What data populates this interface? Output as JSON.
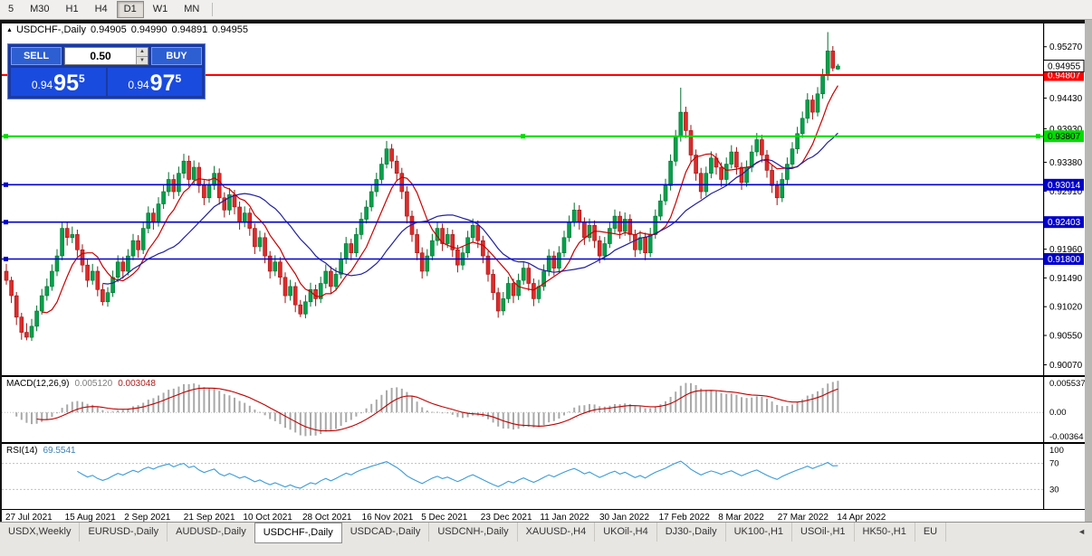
{
  "toolbar": {
    "timeframes": [
      {
        "label": "5",
        "active": false
      },
      {
        "label": "M30",
        "active": false
      },
      {
        "label": "H1",
        "active": false
      },
      {
        "label": "H4",
        "active": false
      },
      {
        "label": "D1",
        "active": true
      },
      {
        "label": "W1",
        "active": false
      },
      {
        "label": "MN",
        "active": false
      }
    ]
  },
  "window": {
    "title_symbol": "USDCHF-,Daily",
    "ohlc": {
      "open": "0.94905",
      "high": "0.94990",
      "low": "0.94891",
      "close": "0.94955"
    }
  },
  "icons": {
    "collapse": "▲",
    "spinner_up": "▲",
    "spinner_down": "▼",
    "tabs_scroll_left": "◄"
  },
  "trade_widget": {
    "sell_label": "SELL",
    "buy_label": "BUY",
    "volume": "0.50",
    "sell_price": {
      "prefix": "0.94",
      "big": "95",
      "sup": "5"
    },
    "buy_price": {
      "prefix": "0.94",
      "big": "97",
      "sup": "5"
    }
  },
  "chart_data": {
    "type": "candlestick",
    "symbol": "USDCHF-",
    "timeframe": "Daily",
    "colors": {
      "up": "#00a24c",
      "up_edge": "#00702f",
      "down": "#e02a2a",
      "down_edge": "#9c1515"
    },
    "y_axis": {
      "min": 0.899,
      "max": 0.9565,
      "ticks": [
        "0.95270",
        "0.94430",
        "0.93930",
        "0.93380",
        "0.92910",
        "0.92440",
        "0.91960",
        "0.91490",
        "0.91020",
        "0.90550",
        "0.90070"
      ]
    },
    "x_labels": [
      "27 Jul 2021",
      "15 Aug 2021",
      "2 Sep 2021",
      "21 Sep 2021",
      "10 Oct 2021",
      "28 Oct 2021",
      "16 Nov 2021",
      "5 Dec 2021",
      "23 Dec 2021",
      "11 Jan 2022",
      "30 Jan 2022",
      "17 Feb 2022",
      "8 Mar 2022",
      "27 Mar 2022",
      "14 Apr 2022"
    ],
    "hlines": [
      {
        "value": 0.94807,
        "label": "0.94807",
        "color": "#ff0000",
        "label_text": "#ffffff",
        "width": 2,
        "handles": []
      },
      {
        "value": 0.93807,
        "label": "0.93807",
        "color": "#00dd00",
        "label_text": "#000000",
        "width": 2,
        "handles": [
          "L",
          "C",
          "R"
        ]
      },
      {
        "value": 0.93014,
        "label": "0.93014",
        "color": "#0000cc",
        "label_text": "#ffffff",
        "width": 1.6,
        "handles": [
          "L"
        ]
      },
      {
        "value": 0.92403,
        "label": "0.92403",
        "color": "#0000cc",
        "label_text": "#ffffff",
        "width": 1.6,
        "handles": [
          "L"
        ]
      },
      {
        "value": 0.918,
        "label": "0.91800",
        "color": "#0000cc",
        "label_text": "#ffffff",
        "width": 1.6,
        "handles": [
          "L"
        ]
      }
    ],
    "current_price": {
      "value": 0.94955,
      "label": "0.94955"
    },
    "ma": [
      {
        "period": 8,
        "color": "#cc0000"
      },
      {
        "period": 20,
        "color": "#20209f"
      }
    ],
    "candles": [
      [
        0.916,
        0.9172,
        0.9138,
        0.9145
      ],
      [
        0.9145,
        0.9151,
        0.9108,
        0.912
      ],
      [
        0.912,
        0.9126,
        0.9072,
        0.9085
      ],
      [
        0.9085,
        0.9092,
        0.9048,
        0.906
      ],
      [
        0.906,
        0.9075,
        0.9047,
        0.9052
      ],
      [
        0.9052,
        0.9082,
        0.9046,
        0.907
      ],
      [
        0.907,
        0.9104,
        0.9062,
        0.9095
      ],
      [
        0.9095,
        0.9131,
        0.9089,
        0.912
      ],
      [
        0.912,
        0.9148,
        0.9112,
        0.9135
      ],
      [
        0.9135,
        0.9171,
        0.9128,
        0.916
      ],
      [
        0.916,
        0.9196,
        0.9152,
        0.9185
      ],
      [
        0.9185,
        0.9241,
        0.9178,
        0.923
      ],
      [
        0.923,
        0.9239,
        0.9202,
        0.9215
      ],
      [
        0.9215,
        0.9233,
        0.9206,
        0.922
      ],
      [
        0.922,
        0.9228,
        0.9184,
        0.9195
      ],
      [
        0.9195,
        0.9204,
        0.9158,
        0.917
      ],
      [
        0.917,
        0.9179,
        0.9134,
        0.9145
      ],
      [
        0.9145,
        0.9172,
        0.9138,
        0.916
      ],
      [
        0.916,
        0.9168,
        0.9119,
        0.913
      ],
      [
        0.913,
        0.9139,
        0.9104,
        0.911
      ],
      [
        0.911,
        0.9134,
        0.9102,
        0.9125
      ],
      [
        0.9125,
        0.9161,
        0.9118,
        0.915
      ],
      [
        0.915,
        0.9186,
        0.9142,
        0.9175
      ],
      [
        0.9175,
        0.9184,
        0.9148,
        0.916
      ],
      [
        0.916,
        0.9196,
        0.9153,
        0.9185
      ],
      [
        0.9185,
        0.9221,
        0.9178,
        0.921
      ],
      [
        0.921,
        0.9219,
        0.9182,
        0.9195
      ],
      [
        0.9195,
        0.9241,
        0.9188,
        0.923
      ],
      [
        0.923,
        0.9266,
        0.9222,
        0.9255
      ],
      [
        0.9255,
        0.9263,
        0.9228,
        0.924
      ],
      [
        0.924,
        0.9281,
        0.9233,
        0.927
      ],
      [
        0.927,
        0.9301,
        0.9262,
        0.929
      ],
      [
        0.929,
        0.9322,
        0.9283,
        0.931
      ],
      [
        0.931,
        0.9318,
        0.9278,
        0.929
      ],
      [
        0.929,
        0.9331,
        0.9283,
        0.932
      ],
      [
        0.932,
        0.9352,
        0.9312,
        0.934
      ],
      [
        0.934,
        0.9349,
        0.9298,
        0.931
      ],
      [
        0.931,
        0.9341,
        0.9302,
        0.933
      ],
      [
        0.933,
        0.9338,
        0.9288,
        0.93
      ],
      [
        0.93,
        0.9309,
        0.9268,
        0.928
      ],
      [
        0.928,
        0.9311,
        0.9272,
        0.93
      ],
      [
        0.93,
        0.9332,
        0.9293,
        0.932
      ],
      [
        0.932,
        0.9328,
        0.9269,
        0.928
      ],
      [
        0.928,
        0.9289,
        0.9248,
        0.926
      ],
      [
        0.926,
        0.9296,
        0.9252,
        0.9285
      ],
      [
        0.9285,
        0.9293,
        0.9253,
        0.9265
      ],
      [
        0.9265,
        0.9274,
        0.9228,
        0.924
      ],
      [
        0.924,
        0.9266,
        0.9232,
        0.9255
      ],
      [
        0.9255,
        0.9263,
        0.9218,
        0.923
      ],
      [
        0.923,
        0.9238,
        0.9188,
        0.92
      ],
      [
        0.92,
        0.9226,
        0.9192,
        0.9215
      ],
      [
        0.9215,
        0.9223,
        0.9173,
        0.9185
      ],
      [
        0.9185,
        0.9193,
        0.9148,
        0.916
      ],
      [
        0.916,
        0.9186,
        0.9152,
        0.9175
      ],
      [
        0.9175,
        0.9183,
        0.9138,
        0.915
      ],
      [
        0.915,
        0.9158,
        0.9108,
        0.912
      ],
      [
        0.912,
        0.9146,
        0.9112,
        0.9135
      ],
      [
        0.9135,
        0.9142,
        0.9093,
        0.9105
      ],
      [
        0.9105,
        0.9113,
        0.9085,
        0.909
      ],
      [
        0.909,
        0.9121,
        0.9083,
        0.911
      ],
      [
        0.911,
        0.9141,
        0.9102,
        0.913
      ],
      [
        0.913,
        0.9138,
        0.9103,
        0.9115
      ],
      [
        0.9115,
        0.9151,
        0.9108,
        0.914
      ],
      [
        0.914,
        0.9171,
        0.9132,
        0.916
      ],
      [
        0.916,
        0.9168,
        0.9123,
        0.9135
      ],
      [
        0.9135,
        0.9166,
        0.9128,
        0.9155
      ],
      [
        0.9155,
        0.9191,
        0.9148,
        0.918
      ],
      [
        0.918,
        0.9216,
        0.9172,
        0.9205
      ],
      [
        0.9205,
        0.9213,
        0.9178,
        0.919
      ],
      [
        0.919,
        0.9231,
        0.9183,
        0.922
      ],
      [
        0.922,
        0.9256,
        0.9212,
        0.9245
      ],
      [
        0.9245,
        0.9276,
        0.9238,
        0.9265
      ],
      [
        0.9265,
        0.9301,
        0.9258,
        0.929
      ],
      [
        0.929,
        0.9321,
        0.9282,
        0.931
      ],
      [
        0.931,
        0.9346,
        0.9303,
        0.9335
      ],
      [
        0.9335,
        0.9373,
        0.9328,
        0.936
      ],
      [
        0.936,
        0.9368,
        0.9328,
        0.934
      ],
      [
        0.934,
        0.9349,
        0.9308,
        0.932
      ],
      [
        0.932,
        0.9329,
        0.9278,
        0.929
      ],
      [
        0.929,
        0.9299,
        0.9238,
        0.925
      ],
      [
        0.925,
        0.9259,
        0.9208,
        0.922
      ],
      [
        0.922,
        0.9229,
        0.9178,
        0.919
      ],
      [
        0.919,
        0.9199,
        0.9148,
        0.916
      ],
      [
        0.916,
        0.9196,
        0.9152,
        0.9185
      ],
      [
        0.9185,
        0.9221,
        0.9178,
        0.921
      ],
      [
        0.921,
        0.9241,
        0.9202,
        0.923
      ],
      [
        0.923,
        0.9238,
        0.9193,
        0.9205
      ],
      [
        0.9205,
        0.9231,
        0.9198,
        0.922
      ],
      [
        0.922,
        0.9228,
        0.9183,
        0.9195
      ],
      [
        0.9195,
        0.9203,
        0.9158,
        0.917
      ],
      [
        0.917,
        0.9201,
        0.9162,
        0.919
      ],
      [
        0.919,
        0.9226,
        0.9182,
        0.9215
      ],
      [
        0.9215,
        0.9246,
        0.9208,
        0.9235
      ],
      [
        0.9235,
        0.9243,
        0.9198,
        0.921
      ],
      [
        0.921,
        0.9218,
        0.9173,
        0.9185
      ],
      [
        0.9185,
        0.9193,
        0.9143,
        0.9155
      ],
      [
        0.9155,
        0.9163,
        0.9113,
        0.9125
      ],
      [
        0.9125,
        0.9133,
        0.9084,
        0.9095
      ],
      [
        0.9095,
        0.9126,
        0.9088,
        0.9115
      ],
      [
        0.9115,
        0.9151,
        0.9108,
        0.914
      ],
      [
        0.914,
        0.9148,
        0.9108,
        0.912
      ],
      [
        0.912,
        0.9156,
        0.9113,
        0.9145
      ],
      [
        0.9145,
        0.9176,
        0.9138,
        0.9165
      ],
      [
        0.9165,
        0.9173,
        0.9128,
        0.914
      ],
      [
        0.914,
        0.9148,
        0.9103,
        0.9115
      ],
      [
        0.9115,
        0.9146,
        0.9108,
        0.9135
      ],
      [
        0.9135,
        0.9171,
        0.9128,
        0.916
      ],
      [
        0.916,
        0.9196,
        0.9152,
        0.9185
      ],
      [
        0.9185,
        0.9193,
        0.9153,
        0.9165
      ],
      [
        0.9165,
        0.9201,
        0.9158,
        0.919
      ],
      [
        0.919,
        0.9226,
        0.9183,
        0.9215
      ],
      [
        0.9215,
        0.9251,
        0.9208,
        0.924
      ],
      [
        0.924,
        0.9272,
        0.9233,
        0.926
      ],
      [
        0.926,
        0.9268,
        0.9228,
        0.924
      ],
      [
        0.924,
        0.9248,
        0.9203,
        0.9215
      ],
      [
        0.9215,
        0.9246,
        0.9208,
        0.9235
      ],
      [
        0.9235,
        0.9243,
        0.9198,
        0.921
      ],
      [
        0.921,
        0.9218,
        0.9173,
        0.9185
      ],
      [
        0.9185,
        0.9216,
        0.9178,
        0.9205
      ],
      [
        0.9205,
        0.9241,
        0.9198,
        0.923
      ],
      [
        0.923,
        0.9261,
        0.9222,
        0.925
      ],
      [
        0.925,
        0.9258,
        0.9213,
        0.9225
      ],
      [
        0.9225,
        0.9256,
        0.9218,
        0.9245
      ],
      [
        0.9245,
        0.9253,
        0.9208,
        0.922
      ],
      [
        0.922,
        0.9228,
        0.9183,
        0.9195
      ],
      [
        0.9195,
        0.9226,
        0.9188,
        0.9215
      ],
      [
        0.9215,
        0.9223,
        0.9178,
        0.919
      ],
      [
        0.919,
        0.9231,
        0.9183,
        0.922
      ],
      [
        0.922,
        0.9261,
        0.9213,
        0.925
      ],
      [
        0.925,
        0.9286,
        0.9243,
        0.9275
      ],
      [
        0.9275,
        0.9311,
        0.9268,
        0.93
      ],
      [
        0.93,
        0.9351,
        0.9292,
        0.934
      ],
      [
        0.934,
        0.9391,
        0.9332,
        0.938
      ],
      [
        0.938,
        0.946,
        0.9372,
        0.942
      ],
      [
        0.942,
        0.9429,
        0.9378,
        0.939
      ],
      [
        0.939,
        0.9399,
        0.9338,
        0.935
      ],
      [
        0.935,
        0.9359,
        0.9308,
        0.932
      ],
      [
        0.932,
        0.9329,
        0.9278,
        0.929
      ],
      [
        0.929,
        0.9331,
        0.9283,
        0.932
      ],
      [
        0.932,
        0.9356,
        0.9312,
        0.9345
      ],
      [
        0.9345,
        0.9353,
        0.9318,
        0.933
      ],
      [
        0.933,
        0.9338,
        0.9298,
        0.931
      ],
      [
        0.931,
        0.9346,
        0.9302,
        0.9335
      ],
      [
        0.9335,
        0.9366,
        0.9328,
        0.9355
      ],
      [
        0.9355,
        0.9363,
        0.9318,
        0.933
      ],
      [
        0.933,
        0.9338,
        0.9293,
        0.9305
      ],
      [
        0.9305,
        0.9341,
        0.9298,
        0.933
      ],
      [
        0.933,
        0.9366,
        0.9322,
        0.9355
      ],
      [
        0.9355,
        0.9386,
        0.9348,
        0.9375
      ],
      [
        0.9375,
        0.9383,
        0.9338,
        0.935
      ],
      [
        0.935,
        0.9358,
        0.9313,
        0.9325
      ],
      [
        0.9325,
        0.9333,
        0.9288,
        0.93
      ],
      [
        0.93,
        0.9308,
        0.9268,
        0.928
      ],
      [
        0.928,
        0.9321,
        0.9273,
        0.931
      ],
      [
        0.931,
        0.9346,
        0.9302,
        0.9335
      ],
      [
        0.9335,
        0.9371,
        0.9328,
        0.936
      ],
      [
        0.936,
        0.9396,
        0.9352,
        0.9385
      ],
      [
        0.9385,
        0.9421,
        0.9378,
        0.941
      ],
      [
        0.941,
        0.9451,
        0.9402,
        0.944
      ],
      [
        0.944,
        0.9448,
        0.9408,
        0.942
      ],
      [
        0.942,
        0.9461,
        0.9413,
        0.945
      ],
      [
        0.945,
        0.9491,
        0.9442,
        0.948
      ],
      [
        0.948,
        0.9551,
        0.9472,
        0.952
      ],
      [
        0.952,
        0.9528,
        0.9487,
        0.9492
      ],
      [
        0.94905,
        0.9499,
        0.94891,
        0.94955
      ]
    ]
  },
  "macd": {
    "label": "MACD(12,26,9)",
    "value1": "0.005120",
    "value2": "0.003048",
    "params": {
      "fast": 12,
      "slow": 26,
      "signal": 9
    },
    "axis_labels": [
      "0.005537",
      "0.00",
      "-0.00364"
    ],
    "colors": {
      "histogram": "#a9a9a9",
      "signal": "#c00000"
    }
  },
  "rsi": {
    "label": "RSI(14)",
    "value": "69.5541",
    "period": 14,
    "levels": [
      70,
      30
    ],
    "axis_labels": [
      "100",
      "70",
      "30"
    ],
    "color": "#3c9cd7"
  },
  "tabs": {
    "scroll_left_icon": "◄",
    "items": [
      {
        "label": "USDX,Weekly",
        "active": false
      },
      {
        "label": "EURUSD-,Daily",
        "active": false
      },
      {
        "label": "AUDUSD-,Daily",
        "active": false
      },
      {
        "label": "USDCHF-,Daily",
        "active": true
      },
      {
        "label": "USDCAD-,Daily",
        "active": false
      },
      {
        "label": "USDCNH-,Daily",
        "active": false
      },
      {
        "label": "XAUUSD-,H4",
        "active": false
      },
      {
        "label": "UKOil-,H4",
        "active": false
      },
      {
        "label": "DJ30-,Daily",
        "active": false
      },
      {
        "label": "UK100-,H1",
        "active": false
      },
      {
        "label": "USOil-,H1",
        "active": false
      },
      {
        "label": "HK50-,H1",
        "active": false
      },
      {
        "label": "EU",
        "active": false
      }
    ]
  }
}
